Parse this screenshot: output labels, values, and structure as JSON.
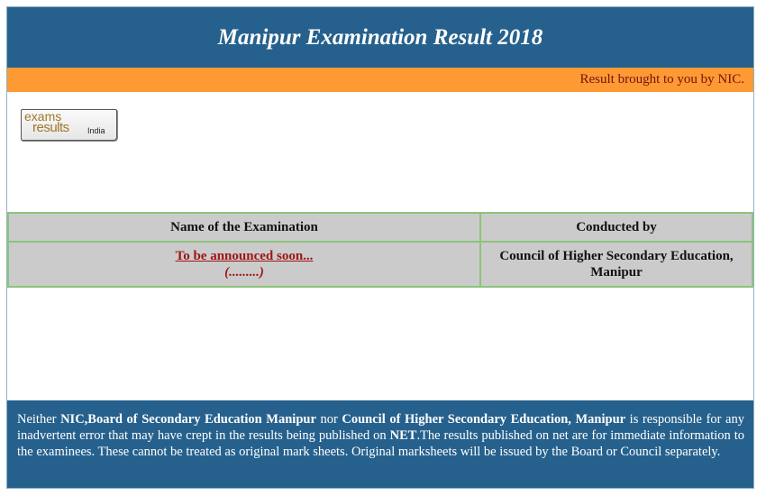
{
  "header": {
    "title": "Manipur Examination Result 2018"
  },
  "strip": {
    "text": "Result brought to you by NIC."
  },
  "logo": {
    "line1": "exams",
    "line2": "results",
    "line3": "India"
  },
  "table": {
    "headers": [
      "Name of the Examination",
      "Conducted by"
    ],
    "rows": [
      {
        "exam_link": "To be announced soon...",
        "exam_sub": "(.........)",
        "conducted_by": "Council of Higher Secondary Education, Manipur"
      }
    ]
  },
  "footer": {
    "p1": "Neither ",
    "b1": "NIC,Board of Secondary Education Manipur",
    "p2": " nor ",
    "b2": "Council of Higher Secondary Education, Manipur",
    "p3": " is responsible for any inadvertent error that may have crept in the results being published on ",
    "b3": "NET",
    "p4": ".The results published on net are for immediate information to the examinees. These cannot be treated as original mark sheets. Original marksheets will be issued by the Board or Council separately."
  },
  "colors": {
    "header_bg": "#26618d",
    "strip_bg": "#fd9a33",
    "strip_text": "#7a1010",
    "link": "#a01616",
    "table_bg": "#cbcbcb",
    "table_border": "#8cc47a"
  }
}
